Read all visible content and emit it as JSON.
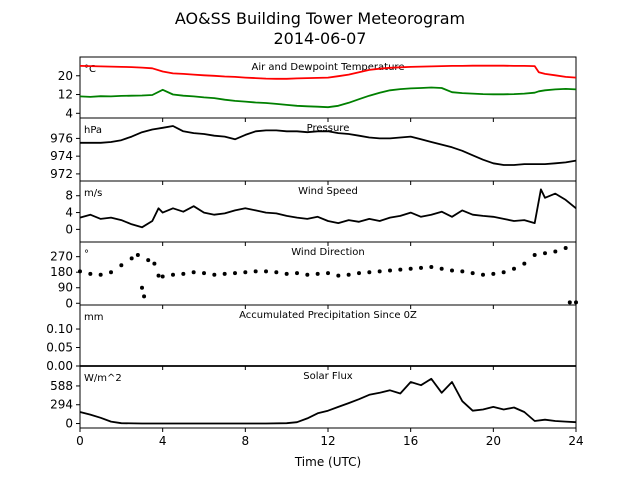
{
  "figure": {
    "title": "AO&SS Building Tower Meteorogram",
    "subtitle": "2014-06-07",
    "xlabel": "Time (UTC)",
    "xticks": [
      0,
      4,
      8,
      12,
      16,
      20,
      24
    ],
    "colors": {
      "temp": "#ff0000",
      "dewpoint": "#008000",
      "line": "#000000"
    }
  },
  "chart_data": [
    {
      "type": "line",
      "title": "Air and Dewpoint Temperature",
      "unit": "°C",
      "ylim": [
        2,
        28
      ],
      "yticks": [
        4,
        12,
        20
      ],
      "x": [
        0,
        0.5,
        1,
        1.5,
        2,
        2.5,
        3,
        3.5,
        4,
        4.5,
        5,
        5.5,
        6,
        6.5,
        7,
        7.5,
        8,
        8.5,
        9,
        9.5,
        10,
        10.5,
        11,
        11.5,
        12,
        12.5,
        13,
        13.5,
        14,
        14.5,
        15,
        15.5,
        16,
        16.5,
        17,
        17.5,
        18,
        18.5,
        19,
        19.5,
        20,
        20.5,
        21,
        21.5,
        22,
        22.2,
        22.5,
        23,
        23.5,
        24
      ],
      "series": [
        {
          "name": "Temperature",
          "color": "#ff0000",
          "values": [
            24.2,
            24.1,
            24.0,
            23.9,
            23.8,
            23.7,
            23.5,
            23.2,
            21.8,
            21.0,
            20.8,
            20.5,
            20.2,
            20.0,
            19.7,
            19.5,
            19.2,
            19.0,
            18.8,
            18.7,
            18.7,
            18.9,
            19.0,
            19.1,
            19.2,
            19.8,
            20.5,
            21.5,
            22.5,
            23.0,
            23.4,
            23.6,
            23.8,
            23.9,
            24.0,
            24.1,
            24.2,
            24.2,
            24.3,
            24.3,
            24.3,
            24.3,
            24.2,
            24.2,
            24.1,
            21.5,
            20.8,
            20.2,
            19.5,
            19.2
          ]
        },
        {
          "name": "Dewpoint",
          "color": "#008000",
          "values": [
            11.2,
            11.0,
            11.3,
            11.2,
            11.4,
            11.5,
            11.6,
            11.8,
            14.0,
            12.0,
            11.5,
            11.2,
            10.8,
            10.5,
            9.8,
            9.3,
            9.0,
            8.6,
            8.4,
            8.0,
            7.6,
            7.2,
            7.0,
            6.8,
            6.6,
            7.2,
            8.5,
            10.0,
            11.5,
            12.8,
            13.8,
            14.3,
            14.6,
            14.8,
            15.0,
            14.8,
            13.0,
            12.6,
            12.4,
            12.2,
            12.1,
            12.1,
            12.2,
            12.4,
            12.8,
            13.4,
            13.8,
            14.2,
            14.4,
            14.2
          ]
        }
      ]
    },
    {
      "type": "line",
      "title": "Pressure",
      "unit": "hPa",
      "ylim": [
        971.2,
        978.3
      ],
      "yticks": [
        972,
        974,
        976
      ],
      "x": [
        0,
        1,
        1.5,
        2,
        2.5,
        3,
        3.5,
        4,
        4.5,
        5,
        5.5,
        6,
        6.5,
        7,
        7.5,
        8,
        8.5,
        9,
        9.5,
        10,
        10.5,
        11,
        11.5,
        12,
        12.5,
        13,
        13.5,
        14,
        14.5,
        15,
        15.5,
        16,
        16.5,
        17,
        17.5,
        18,
        18.5,
        19,
        19.5,
        20,
        20.5,
        21,
        21.5,
        22,
        22.5,
        23,
        23.5,
        24
      ],
      "series": [
        {
          "name": "Pressure",
          "color": "#000000",
          "values": [
            975.5,
            975.5,
            975.6,
            975.8,
            976.2,
            976.7,
            977.0,
            977.2,
            977.4,
            976.8,
            976.6,
            976.5,
            976.3,
            976.2,
            975.9,
            976.4,
            976.8,
            976.9,
            976.9,
            976.8,
            976.8,
            976.7,
            976.8,
            976.8,
            976.6,
            976.5,
            976.3,
            976.1,
            976.0,
            976.0,
            976.1,
            976.2,
            975.9,
            975.6,
            975.3,
            975.0,
            974.6,
            974.1,
            973.6,
            973.2,
            973.0,
            973.0,
            973.1,
            973.1,
            973.1,
            973.2,
            973.3,
            973.5
          ]
        }
      ]
    },
    {
      "type": "line",
      "title": "Wind Speed",
      "unit": "m/s",
      "ylim": [
        -3,
        11.5
      ],
      "yticks": [
        0,
        4,
        8
      ],
      "x": [
        0,
        0.5,
        1,
        1.5,
        2,
        2.5,
        3,
        3.5,
        3.8,
        4,
        4.5,
        5,
        5.5,
        6,
        6.5,
        7,
        7.5,
        8,
        8.5,
        9,
        9.5,
        10,
        10.5,
        11,
        11.5,
        12,
        12.5,
        13,
        13.5,
        14,
        14.5,
        15,
        15.5,
        16,
        16.5,
        17,
        17.5,
        18,
        18.5,
        19,
        19.5,
        20,
        20.5,
        21,
        21.5,
        22,
        22.3,
        22.5,
        23,
        23.5,
        24
      ],
      "series": [
        {
          "name": "Wind Speed",
          "color": "#000000",
          "values": [
            2.8,
            3.5,
            2.5,
            2.8,
            2.2,
            1.2,
            0.5,
            2.0,
            5.0,
            4.0,
            5.0,
            4.2,
            5.5,
            4.0,
            3.5,
            3.8,
            4.5,
            5.0,
            4.5,
            4.0,
            3.8,
            3.2,
            2.8,
            2.5,
            3.0,
            2.0,
            1.5,
            2.2,
            1.8,
            2.5,
            2.0,
            2.8,
            3.2,
            4.0,
            3.0,
            3.5,
            4.2,
            3.0,
            4.5,
            3.5,
            3.2,
            3.0,
            2.5,
            2.0,
            2.2,
            1.5,
            9.5,
            7.5,
            8.5,
            7.0,
            5.0
          ]
        }
      ]
    },
    {
      "type": "scatter",
      "title": "Wind Direction",
      "unit": "°",
      "ylim": [
        -10,
        355
      ],
      "yticks": [
        0,
        90,
        180,
        270
      ],
      "x": [
        0,
        0.5,
        1,
        1.5,
        2,
        2.5,
        2.8,
        3,
        3.1,
        3.3,
        3.6,
        3.8,
        4,
        4.5,
        5,
        5.5,
        6,
        6.5,
        7,
        7.5,
        8,
        8.5,
        9,
        9.5,
        10,
        10.5,
        11,
        11.5,
        12,
        12.5,
        13,
        13.5,
        14,
        14.5,
        15,
        15.5,
        16,
        16.5,
        17,
        17.5,
        18,
        18.5,
        19,
        19.5,
        20,
        20.5,
        21,
        21.5,
        22,
        22.5,
        23,
        23.5,
        23.7,
        24
      ],
      "series": [
        {
          "name": "Wind Direction",
          "color": "#000000",
          "values": [
            185,
            170,
            165,
            180,
            220,
            260,
            280,
            90,
            40,
            250,
            230,
            160,
            155,
            165,
            170,
            180,
            175,
            165,
            170,
            175,
            180,
            185,
            185,
            180,
            170,
            175,
            165,
            170,
            175,
            160,
            165,
            175,
            180,
            185,
            190,
            195,
            200,
            205,
            210,
            200,
            190,
            185,
            175,
            165,
            170,
            180,
            200,
            230,
            280,
            290,
            300,
            320,
            5,
            5
          ]
        }
      ]
    },
    {
      "type": "line",
      "title": "Accumulated Precipitation Since 0Z",
      "unit": "mm",
      "ylim": [
        0,
        0.165
      ],
      "yticks": [
        0.0,
        0.05,
        0.1
      ],
      "ytick_labels": [
        "0.00",
        "0.05",
        "0.10"
      ],
      "x": [
        0,
        24
      ],
      "series": [
        {
          "name": "Precipitation",
          "color": "#000000",
          "values": [
            0,
            0
          ]
        }
      ]
    },
    {
      "type": "line",
      "title": "Solar Flux",
      "unit": "W/m^2",
      "ylim": [
        -70,
        900
      ],
      "yticks": [
        0,
        294,
        588
      ],
      "x": [
        0,
        0.5,
        1,
        1.5,
        2,
        3,
        4,
        5,
        6,
        7,
        8,
        9,
        10,
        10.5,
        11,
        11.5,
        12,
        12.5,
        13,
        13.5,
        14,
        14.5,
        15,
        15.5,
        16,
        16.5,
        17,
        17.5,
        18,
        18.5,
        19,
        19.5,
        20,
        20.5,
        21,
        21.5,
        22,
        22.5,
        23,
        23.5,
        24
      ],
      "series": [
        {
          "name": "Solar Flux",
          "color": "#000000",
          "values": [
            180,
            140,
            90,
            30,
            5,
            0,
            0,
            0,
            0,
            0,
            0,
            0,
            5,
            20,
            80,
            160,
            200,
            260,
            320,
            380,
            450,
            480,
            520,
            470,
            650,
            600,
            700,
            480,
            650,
            350,
            200,
            220,
            260,
            220,
            250,
            180,
            40,
            60,
            40,
            30,
            20
          ]
        }
      ]
    }
  ]
}
